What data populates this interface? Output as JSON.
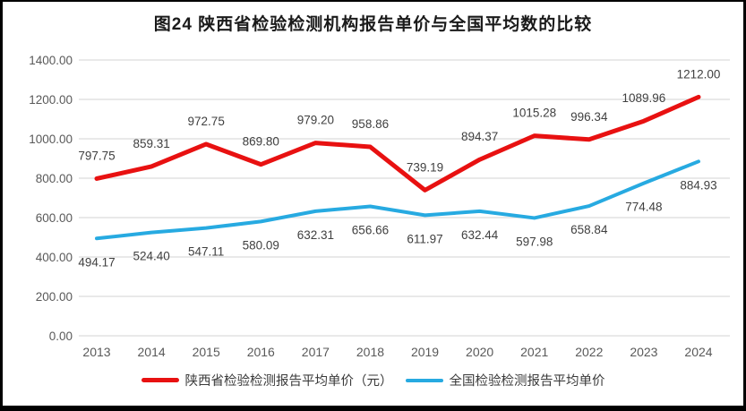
{
  "title": "图24 陕西省检验检测机构报告单价与全国平均数的比较",
  "chart_data": {
    "type": "line",
    "categories": [
      "2013",
      "2014",
      "2015",
      "2016",
      "2017",
      "2018",
      "2019",
      "2020",
      "2021",
      "2022",
      "2023",
      "2024"
    ],
    "series": [
      {
        "name": "陕西省检验检测报告平均单价（元）",
        "color": "#e81111",
        "values": [
          797.75,
          859.31,
          972.75,
          869.8,
          979.2,
          958.86,
          739.19,
          894.37,
          1015.28,
          996.34,
          1089.96,
          1212.0
        ],
        "label_position": "above"
      },
      {
        "name": "全国检验检测报告平均单价",
        "color": "#27aae1",
        "values": [
          494.17,
          524.4,
          547.11,
          580.09,
          632.31,
          656.66,
          611.97,
          632.44,
          597.98,
          658.84,
          774.48,
          884.93
        ],
        "label_position": "below"
      }
    ],
    "y_ticks": [
      "1400.00",
      "1200.00",
      "1000.00",
      "800.00",
      "600.00",
      "400.00",
      "200.00",
      "0.00"
    ],
    "ylim": [
      0,
      1400
    ],
    "grid": true,
    "legend_position": "bottom",
    "data_labels_shown": true
  },
  "colors": {
    "grid": "#dcdcdc",
    "axis_text": "#595959",
    "data_label_text": "#404040",
    "frame": "#000000",
    "background": "#ffffff"
  }
}
